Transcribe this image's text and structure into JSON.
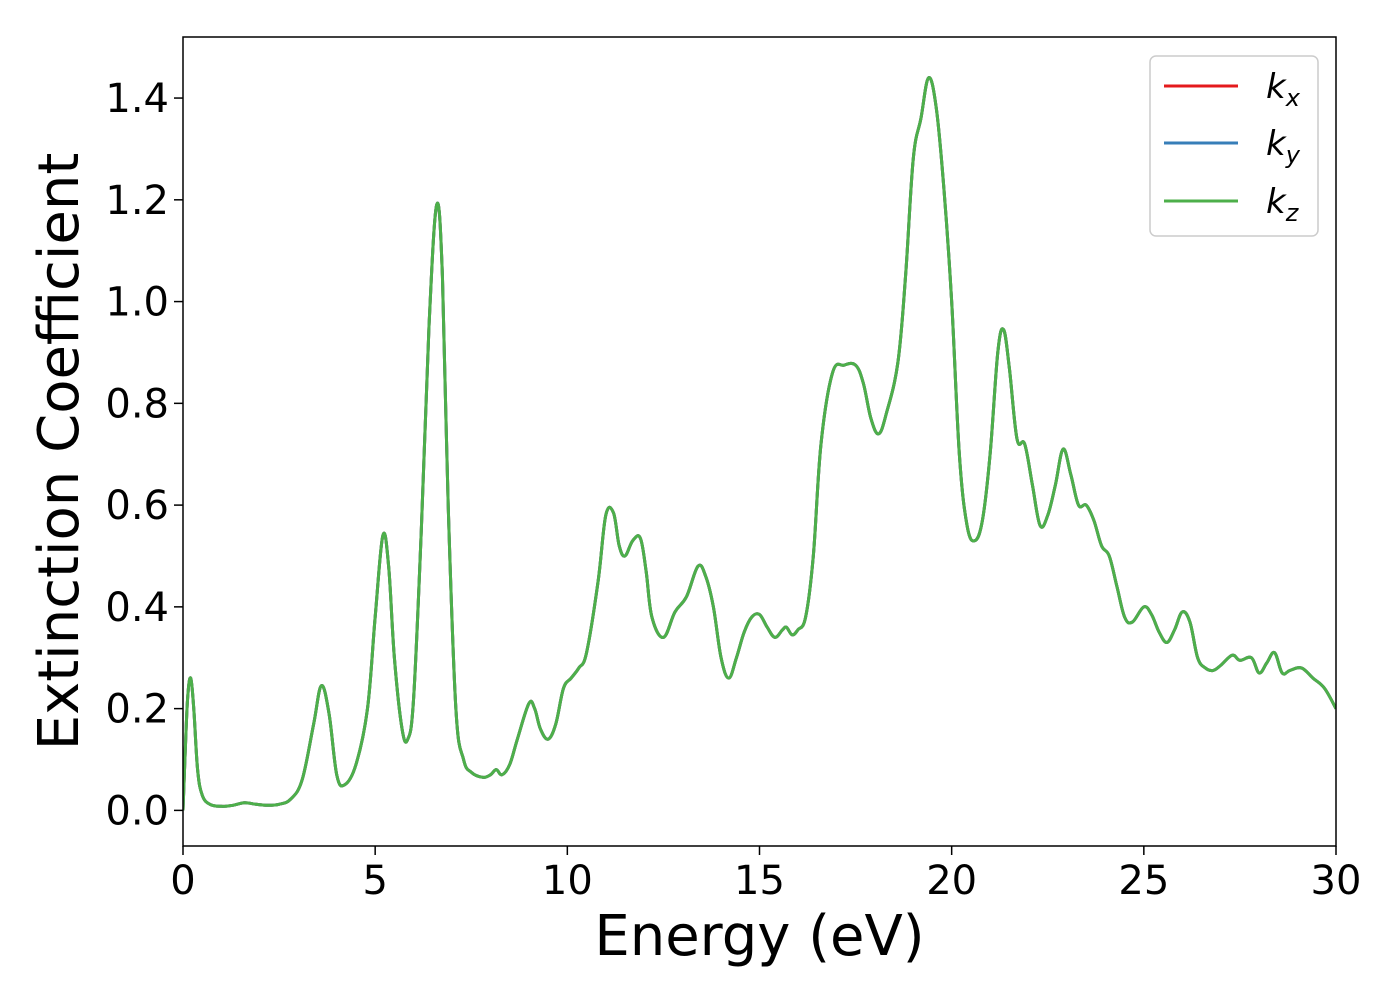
{
  "chart_data": {
    "type": "line",
    "title": "",
    "xlabel": "Energy (eV)",
    "ylabel": "Extinction Coefficient",
    "xlim": [
      0,
      30
    ],
    "ylim": [
      -0.07,
      1.52
    ],
    "x_ticks": [
      0,
      5,
      10,
      15,
      20,
      25,
      30
    ],
    "y_ticks": [
      0.0,
      0.2,
      0.4,
      0.6,
      0.8,
      1.0,
      1.2,
      1.4
    ],
    "x_tick_labels": [
      "0",
      "5",
      "10",
      "15",
      "20",
      "25",
      "30"
    ],
    "y_tick_labels": [
      "0.0",
      "0.2",
      "0.4",
      "0.6",
      "0.8",
      "1.0",
      "1.2",
      "1.4"
    ],
    "grid": false,
    "legend_position": "top-right",
    "series": [
      {
        "name": "kx",
        "legend_base": "k",
        "legend_sub": "x",
        "color": "#e41a1c"
      },
      {
        "name": "ky",
        "legend_base": "k",
        "legend_sub": "y",
        "color": "#377eb8"
      },
      {
        "name": "kz",
        "legend_base": "k",
        "legend_sub": "z",
        "color": "#4daf4a"
      }
    ],
    "curve": {
      "note_identical_series": true,
      "x": [
        0,
        0.05,
        0.12,
        0.2,
        0.28,
        0.38,
        0.5,
        0.7,
        1.0,
        1.3,
        1.6,
        1.9,
        2.2,
        2.5,
        2.8,
        3.1,
        3.4,
        3.6,
        3.8,
        4.0,
        4.2,
        4.5,
        4.8,
        5.0,
        5.2,
        5.35,
        5.5,
        5.7,
        5.85,
        6.0,
        6.2,
        6.4,
        6.6,
        6.75,
        6.9,
        7.1,
        7.3,
        7.5,
        7.8,
        8.0,
        8.15,
        8.3,
        8.5,
        8.7,
        9.0,
        9.15,
        9.3,
        9.5,
        9.7,
        9.9,
        10.1,
        10.3,
        10.5,
        10.8,
        11.0,
        11.2,
        11.35,
        11.5,
        11.7,
        11.9,
        12.05,
        12.2,
        12.5,
        12.8,
        13.1,
        13.4,
        13.6,
        13.8,
        14.0,
        14.2,
        14.4,
        14.6,
        14.8,
        15.0,
        15.2,
        15.4,
        15.6,
        15.7,
        15.85,
        16.0,
        16.2,
        16.4,
        16.6,
        16.9,
        17.2,
        17.5,
        17.7,
        17.9,
        18.1,
        18.3,
        18.6,
        18.8,
        19.0,
        19.2,
        19.4,
        19.6,
        19.8,
        20.0,
        20.2,
        20.4,
        20.6,
        20.8,
        21.0,
        21.2,
        21.35,
        21.5,
        21.7,
        21.9,
        22.1,
        22.3,
        22.5,
        22.7,
        22.9,
        23.1,
        23.3,
        23.5,
        23.7,
        23.9,
        24.1,
        24.3,
        24.5,
        24.7,
        25.0,
        25.2,
        25.4,
        25.6,
        25.8,
        26.0,
        26.2,
        26.4,
        26.6,
        26.8,
        27.0,
        27.3,
        27.5,
        27.8,
        28.0,
        28.2,
        28.4,
        28.6,
        28.8,
        29.1,
        29.4,
        29.7,
        30.0
      ],
      "y": [
        0.0,
        0.1,
        0.22,
        0.26,
        0.2,
        0.08,
        0.03,
        0.012,
        0.008,
        0.01,
        0.015,
        0.012,
        0.01,
        0.012,
        0.022,
        0.06,
        0.17,
        0.245,
        0.19,
        0.07,
        0.05,
        0.09,
        0.2,
        0.38,
        0.54,
        0.48,
        0.3,
        0.16,
        0.14,
        0.22,
        0.55,
        0.95,
        1.19,
        1.05,
        0.6,
        0.2,
        0.1,
        0.075,
        0.065,
        0.07,
        0.08,
        0.07,
        0.09,
        0.14,
        0.21,
        0.2,
        0.16,
        0.14,
        0.17,
        0.24,
        0.26,
        0.28,
        0.31,
        0.45,
        0.58,
        0.585,
        0.52,
        0.5,
        0.53,
        0.535,
        0.47,
        0.38,
        0.34,
        0.39,
        0.42,
        0.48,
        0.46,
        0.4,
        0.3,
        0.26,
        0.3,
        0.35,
        0.38,
        0.385,
        0.36,
        0.34,
        0.355,
        0.36,
        0.345,
        0.355,
        0.38,
        0.5,
        0.72,
        0.86,
        0.875,
        0.875,
        0.84,
        0.77,
        0.74,
        0.78,
        0.88,
        1.05,
        1.28,
        1.36,
        1.44,
        1.38,
        1.22,
        1.0,
        0.7,
        0.56,
        0.53,
        0.57,
        0.7,
        0.9,
        0.945,
        0.87,
        0.73,
        0.72,
        0.64,
        0.56,
        0.58,
        0.64,
        0.71,
        0.66,
        0.6,
        0.6,
        0.57,
        0.52,
        0.5,
        0.44,
        0.38,
        0.37,
        0.4,
        0.385,
        0.35,
        0.33,
        0.355,
        0.39,
        0.37,
        0.3,
        0.28,
        0.275,
        0.285,
        0.305,
        0.295,
        0.3,
        0.27,
        0.29,
        0.31,
        0.27,
        0.275,
        0.28,
        0.26,
        0.24,
        0.2
      ]
    }
  }
}
